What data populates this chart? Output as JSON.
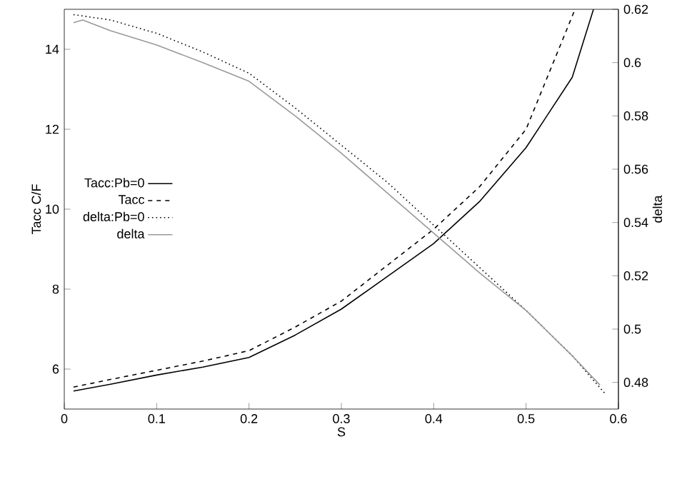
{
  "chart_data": {
    "type": "line",
    "xlabel": "S",
    "ylabel": "Tacc C/F",
    "y2label": "delta",
    "xlim": [
      0,
      0.6
    ],
    "xticks": [
      0,
      0.1,
      0.2,
      0.3,
      0.4,
      0.5,
      0.6
    ],
    "ylim": [
      5,
      15
    ],
    "yticks": [
      6,
      8,
      10,
      12,
      14
    ],
    "y2lim": [
      0.47,
      0.62
    ],
    "y2ticks": [
      0.48,
      0.5,
      0.52,
      0.54,
      0.56,
      0.58,
      0.6,
      0.62
    ],
    "legend": "left",
    "marker": "none",
    "series": [
      {
        "name": "Tacc:Pb=0",
        "color": "#000000",
        "line_style": "solid",
        "x": [
          0.01,
          0.05,
          0.1,
          0.15,
          0.2,
          0.25,
          0.3,
          0.35,
          0.4,
          0.45,
          0.5,
          0.55,
          0.573
        ],
        "values": [
          5.45,
          5.62,
          5.85,
          6.05,
          6.29,
          6.85,
          7.5,
          8.32,
          9.14,
          10.2,
          11.54,
          13.3,
          15
        ]
      },
      {
        "name": "Tacc",
        "color": "#000000",
        "line_style": "dashed",
        "x": [
          0.01,
          0.05,
          0.1,
          0.15,
          0.2,
          0.25,
          0.3,
          0.35,
          0.4,
          0.45,
          0.5,
          0.553
        ],
        "values": [
          5.55,
          5.74,
          5.97,
          6.2,
          6.46,
          7.05,
          7.7,
          8.6,
          9.5,
          10.57,
          12.0,
          15
        ]
      },
      {
        "name": "delta:Pb=0",
        "color": "#000000",
        "line_style": "dotted",
        "axis": "y2",
        "x": [
          0.01,
          0.05,
          0.1,
          0.15,
          0.2,
          0.25,
          0.3,
          0.35,
          0.4,
          0.45,
          0.5,
          0.55,
          0.585
        ],
        "values": [
          0.618,
          0.616,
          0.611,
          0.604,
          0.596,
          0.583,
          0.569,
          0.555,
          0.539,
          0.523,
          0.507,
          0.49,
          0.476
        ]
      },
      {
        "name": "delta",
        "color": "#999999",
        "line_style": "solid",
        "axis": "y2",
        "x": [
          0.01,
          0.02,
          0.05,
          0.1,
          0.15,
          0.2,
          0.25,
          0.3,
          0.35,
          0.4,
          0.45,
          0.5,
          0.55,
          0.58
        ],
        "values": [
          0.615,
          0.616,
          0.612,
          0.6066,
          0.6,
          0.593,
          0.58,
          0.566,
          0.551,
          0.536,
          0.521,
          0.507,
          0.49,
          0.479
        ]
      }
    ]
  }
}
